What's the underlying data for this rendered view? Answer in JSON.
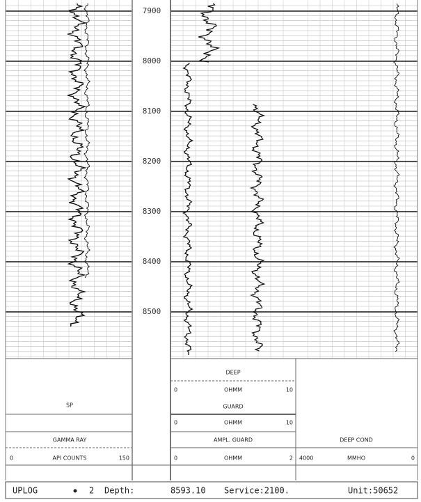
{
  "depth_track": {
    "labels": [
      "7900",
      "8000",
      "8100",
      "8200",
      "8300",
      "8400",
      "8500"
    ]
  },
  "legend": {
    "track1": {
      "curve1": "SP",
      "curve2": "GAMMA RAY",
      "scale": {
        "left": "0",
        "unit": "API COUNTS",
        "right": "150"
      }
    },
    "track2": {
      "deep": {
        "name": "DEEP",
        "left": "0",
        "unit": "OHMM",
        "right": "10"
      },
      "guard": {
        "name": "GUARD",
        "left": "0",
        "unit": "OHMM",
        "right": "10"
      },
      "ampl_guard": {
        "name": "AMPL. GUARD",
        "left": "0",
        "unit": "OHMM",
        "right": "2"
      }
    },
    "track3": {
      "name": "DEEP COND",
      "left": "4000",
      "unit": "MMHO",
      "right": "0"
    }
  },
  "status_bar": {
    "program": "UPLOG",
    "pass": "2",
    "depth_label": "Depth:",
    "depth": "8593.10",
    "service": "Service:2100.",
    "unit": "Unit:50652"
  }
}
